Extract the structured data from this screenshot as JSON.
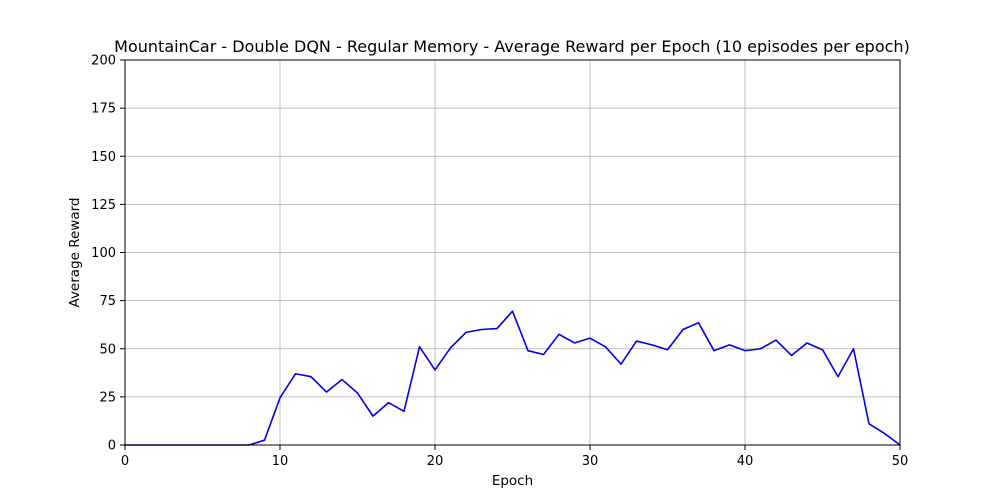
{
  "chart_data": {
    "type": "line",
    "title": "MountainCar - Double DQN - Regular Memory - Average Reward per Epoch (10 episodes per epoch)",
    "xlabel": "Epoch",
    "ylabel": "Average Reward",
    "xlim": [
      0,
      50
    ],
    "ylim": [
      0,
      200
    ],
    "xticks": [
      0,
      10,
      20,
      30,
      40,
      50
    ],
    "yticks": [
      0,
      25,
      50,
      75,
      100,
      125,
      150,
      175,
      200
    ],
    "grid": true,
    "legend": "none",
    "line_color": "#0000ee",
    "series": [
      {
        "x": [
          0,
          1,
          2,
          3,
          4,
          5,
          6,
          7,
          8,
          9,
          10,
          11,
          12,
          13,
          14,
          15,
          16,
          17,
          18,
          19,
          20,
          21,
          22,
          23,
          24,
          25,
          26,
          27,
          28,
          29,
          30,
          31,
          32,
          33,
          34,
          35,
          36,
          37,
          38,
          39,
          40,
          41,
          42,
          43,
          44,
          45,
          46,
          47,
          48,
          49,
          50
        ],
        "values": [
          0,
          0,
          0,
          0,
          0,
          0,
          0,
          0,
          0,
          2.5,
          24.5,
          37,
          35.5,
          27.5,
          34,
          27,
          15,
          22,
          17.5,
          51,
          39,
          50.5,
          58.5,
          60,
          60.5,
          69.5,
          49,
          47,
          57.5,
          53,
          55.5,
          51,
          42,
          54,
          52,
          49.5,
          60,
          63.5,
          49,
          52,
          49,
          50,
          54.5,
          46.5,
          53,
          49.5,
          35.5,
          50,
          11,
          6,
          0
        ]
      }
    ]
  }
}
